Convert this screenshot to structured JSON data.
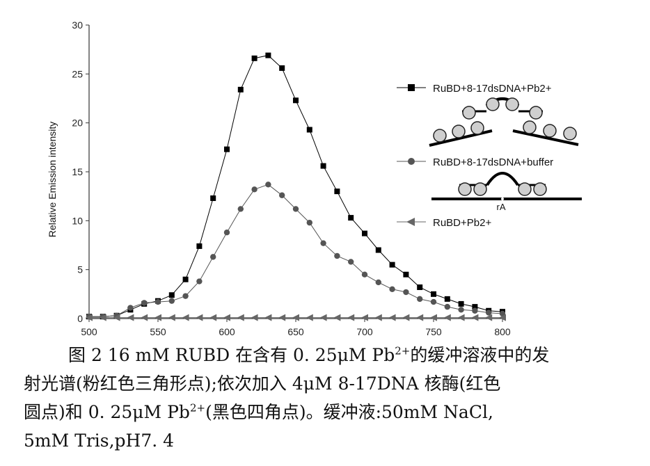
{
  "chart_data": {
    "type": "line",
    "title": "",
    "xlabel": "",
    "ylabel": "Relative Emission intensity",
    "xlim": [
      500,
      800
    ],
    "ylim": [
      0,
      30
    ],
    "xticks": [
      500,
      550,
      600,
      650,
      700,
      750,
      800
    ],
    "yticks": [
      0,
      5,
      10,
      15,
      20,
      25,
      30
    ],
    "grid": false,
    "legend_position": "right",
    "x": [
      500,
      510,
      520,
      530,
      540,
      550,
      560,
      570,
      580,
      590,
      600,
      610,
      620,
      630,
      640,
      650,
      660,
      670,
      680,
      690,
      700,
      710,
      720,
      730,
      740,
      750,
      760,
      770,
      780,
      790,
      800
    ],
    "series": [
      {
        "name": "RuBD+8-17dsDNA+Pb2+",
        "marker": "square",
        "color": "#000000",
        "values": [
          0.2,
          0.2,
          0.3,
          0.9,
          1.5,
          1.8,
          2.4,
          4.0,
          7.4,
          12.3,
          17.3,
          23.4,
          26.6,
          26.9,
          25.6,
          22.3,
          19.3,
          15.6,
          13.0,
          10.3,
          8.7,
          7.0,
          5.5,
          4.5,
          3.2,
          2.5,
          2.0,
          1.5,
          1.2,
          0.8,
          0.7
        ]
      },
      {
        "name": "RuBD+8-17dsDNA+buffer",
        "marker": "circle",
        "color": "#555555",
        "values": [
          0.2,
          0.2,
          0.3,
          1.1,
          1.6,
          1.7,
          1.8,
          2.3,
          3.8,
          6.3,
          8.8,
          11.2,
          13.2,
          13.7,
          12.6,
          11.2,
          9.8,
          7.7,
          6.4,
          5.8,
          4.5,
          3.7,
          3.0,
          2.7,
          2.0,
          1.7,
          1.2,
          0.9,
          0.8,
          0.6,
          0.5
        ]
      },
      {
        "name": "RuBD+Pb2+",
        "marker": "triangle-left",
        "color": "#666666",
        "values": [
          0.1,
          0.1,
          0.1,
          0.1,
          0.1,
          0.1,
          0.1,
          0.1,
          0.1,
          0.1,
          0.1,
          0.1,
          0.1,
          0.1,
          0.1,
          0.1,
          0.1,
          0.1,
          0.1,
          0.1,
          0.1,
          0.1,
          0.1,
          0.1,
          0.1,
          0.1,
          0.1,
          0.1,
          0.1,
          0.1,
          0.1
        ]
      }
    ],
    "inset_label": "rA"
  },
  "caption": {
    "line1_a": "图 2 16 mM RUBD 在含有 0. 25μM Pb",
    "line1_sup": "2+",
    "line1_b": "的缓冲溶液中的发",
    "line2": "射光谱(粉红色三角形点);依次加入 4μM 8-17DNA 核酶(红色",
    "line3_a": "圆点)和 0. 25μM  Pb",
    "line3_sup": "2+",
    "line3_b": "(黑色四角点)。缓冲液:50mM NaCl,",
    "line4": "5mM Tris,pH7. 4"
  }
}
